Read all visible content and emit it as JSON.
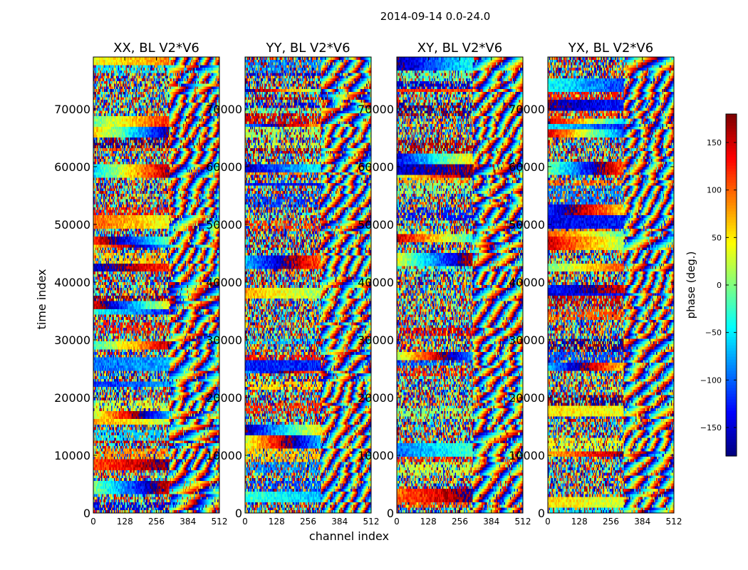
{
  "figure_title": "2014-09-14 0.0-24.0",
  "colorbar": {
    "label": "phase (deg.)",
    "min": -180,
    "max": 180,
    "ticks": [
      150,
      100,
      50,
      0,
      -50,
      -100,
      -150
    ],
    "tick_labels": [
      "150",
      "100",
      "50",
      "0",
      "−50",
      "−100",
      "−150"
    ],
    "colormap": "jet"
  },
  "chart_data": [
    {
      "type": "heatmap",
      "title": "XX, BL V2*V6",
      "xlabel": "",
      "ylabel": "time index",
      "xlim": [
        0,
        512
      ],
      "ylim": [
        0,
        79000
      ],
      "x_ticks": [
        0,
        128,
        256,
        384,
        512
      ],
      "x_tick_labels": [
        "0",
        "128",
        "256",
        "384",
        "512"
      ],
      "y_ticks": [
        0,
        10000,
        20000,
        30000,
        40000,
        50000,
        60000,
        70000
      ],
      "y_tick_labels": [
        "0",
        "10000",
        "20000",
        "30000",
        "40000",
        "50000",
        "60000",
        "70000"
      ],
      "value_range": [
        -180,
        180
      ],
      "seed": 11
    },
    {
      "type": "heatmap",
      "title": "YY, BL V2*V6",
      "xlabel": "channel index",
      "ylabel": "",
      "xlim": [
        0,
        512
      ],
      "ylim": [
        0,
        79000
      ],
      "x_ticks": [
        0,
        128,
        256,
        384,
        512
      ],
      "x_tick_labels": [
        "0",
        "128",
        "256",
        "384",
        "512"
      ],
      "y_ticks": [
        0,
        10000,
        20000,
        30000,
        40000,
        50000,
        60000,
        70000
      ],
      "y_tick_labels": [
        "0",
        "10000",
        "20000",
        "30000",
        "40000",
        "50000",
        "60000",
        "70000"
      ],
      "value_range": [
        -180,
        180
      ],
      "seed": 23
    },
    {
      "type": "heatmap",
      "title": "XY, BL V2*V6",
      "xlabel": "",
      "ylabel": "",
      "xlim": [
        0,
        512
      ],
      "ylim": [
        0,
        79000
      ],
      "x_ticks": [
        0,
        128,
        256,
        384,
        512
      ],
      "x_tick_labels": [
        "0",
        "128",
        "256",
        "384",
        "512"
      ],
      "y_ticks": [
        0,
        10000,
        20000,
        30000,
        40000,
        50000,
        60000,
        70000
      ],
      "y_tick_labels": [
        "0",
        "10000",
        "20000",
        "30000",
        "40000",
        "50000",
        "60000",
        "70000"
      ],
      "value_range": [
        -180,
        180
      ],
      "seed": 37
    },
    {
      "type": "heatmap",
      "title": "YX, BL V2*V6",
      "xlabel": "",
      "ylabel": "",
      "xlim": [
        0,
        512
      ],
      "ylim": [
        0,
        79000
      ],
      "x_ticks": [
        0,
        128,
        256,
        384,
        512
      ],
      "x_tick_labels": [
        "0",
        "128",
        "256",
        "384",
        "512"
      ],
      "y_ticks": [
        0,
        10000,
        20000,
        30000,
        40000,
        50000,
        60000,
        70000
      ],
      "y_tick_labels": [
        "0",
        "10000",
        "20000",
        "30000",
        "40000",
        "50000",
        "60000",
        "70000"
      ],
      "value_range": [
        -180,
        180
      ],
      "seed": 53
    }
  ]
}
